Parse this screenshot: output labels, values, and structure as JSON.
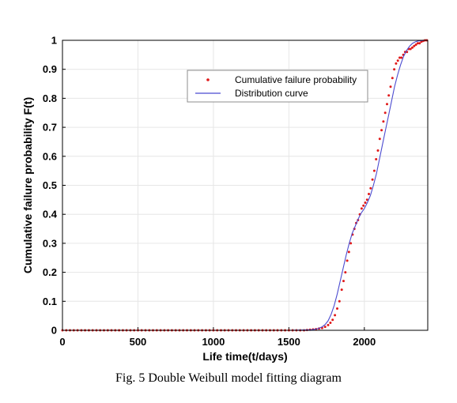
{
  "caption": "Fig. 5 Double Weibull model fitting diagram",
  "chart_data": {
    "type": "scatter",
    "xlabel": "Life time(t/days)",
    "ylabel": "Cumulative failure probability F(t)",
    "xlim": [
      0,
      2420
    ],
    "ylim": [
      0,
      1
    ],
    "x_ticks": [
      0,
      500,
      1000,
      1500,
      2000
    ],
    "y_ticks": [
      0,
      0.1,
      0.2,
      0.3,
      0.4,
      0.5,
      0.6,
      0.7,
      0.8,
      0.9,
      1
    ],
    "grid": true,
    "legend_position": "top-right",
    "series": [
      {
        "name": "Cumulative failure probability",
        "style": "dots",
        "color": "#e0191a",
        "x": [
          0,
          25,
          50,
          75,
          100,
          125,
          150,
          175,
          200,
          225,
          250,
          275,
          300,
          325,
          350,
          375,
          400,
          425,
          450,
          475,
          500,
          525,
          550,
          575,
          600,
          625,
          650,
          675,
          700,
          725,
          750,
          775,
          800,
          825,
          850,
          875,
          900,
          925,
          950,
          975,
          1000,
          1025,
          1050,
          1075,
          1100,
          1125,
          1150,
          1175,
          1200,
          1225,
          1250,
          1275,
          1300,
          1325,
          1350,
          1375,
          1400,
          1425,
          1450,
          1475,
          1500,
          1525,
          1550,
          1575,
          1600,
          1620,
          1640,
          1660,
          1680,
          1700,
          1720,
          1740,
          1760,
          1775,
          1790,
          1805,
          1820,
          1835,
          1850,
          1862,
          1874,
          1886,
          1898,
          1910,
          1922,
          1934,
          1946,
          1958,
          1970,
          1982,
          1994,
          2006,
          2018,
          2030,
          2042,
          2054,
          2066,
          2078,
          2090,
          2102,
          2114,
          2126,
          2138,
          2150,
          2162,
          2174,
          2186,
          2198,
          2210,
          2222,
          2234,
          2246,
          2258,
          2270,
          2282,
          2294,
          2306,
          2318,
          2330,
          2342,
          2354,
          2366,
          2378,
          2390,
          2402,
          2414
        ],
        "y": [
          0,
          0,
          0,
          0,
          0,
          0,
          0,
          0,
          0,
          0,
          0,
          0,
          0,
          0,
          0,
          0,
          0,
          0,
          0,
          0,
          0,
          0,
          0,
          0,
          0,
          0,
          0,
          0,
          0,
          0,
          0,
          0,
          0,
          0,
          0,
          0,
          0,
          0,
          0,
          0,
          0,
          0,
          0,
          0,
          0,
          0,
          0,
          0,
          0,
          0,
          0,
          0,
          0,
          0,
          0,
          0,
          0,
          0,
          0,
          0,
          0,
          0,
          0,
          0,
          0,
          0.001,
          0.002,
          0.003,
          0.004,
          0.006,
          0.008,
          0.012,
          0.018,
          0.026,
          0.036,
          0.052,
          0.075,
          0.1,
          0.14,
          0.17,
          0.2,
          0.24,
          0.27,
          0.3,
          0.33,
          0.35,
          0.37,
          0.38,
          0.4,
          0.42,
          0.43,
          0.44,
          0.45,
          0.47,
          0.49,
          0.52,
          0.55,
          0.59,
          0.62,
          0.66,
          0.69,
          0.72,
          0.75,
          0.78,
          0.81,
          0.84,
          0.87,
          0.9,
          0.92,
          0.93,
          0.94,
          0.94,
          0.95,
          0.96,
          0.96,
          0.97,
          0.97,
          0.975,
          0.98,
          0.985,
          0.99,
          0.99,
          0.995,
          0.998,
          1,
          1
        ]
      },
      {
        "name": "Distribution curve",
        "style": "line",
        "color": "#4b4bd0",
        "x": [
          0,
          200,
          400,
          600,
          800,
          1000,
          1200,
          1400,
          1500,
          1550,
          1600,
          1650,
          1680,
          1700,
          1720,
          1740,
          1760,
          1780,
          1800,
          1820,
          1840,
          1860,
          1880,
          1900,
          1920,
          1940,
          1960,
          1980,
          2000,
          2020,
          2040,
          2060,
          2080,
          2100,
          2120,
          2140,
          2160,
          2180,
          2200,
          2220,
          2240,
          2260,
          2280,
          2300,
          2320,
          2340,
          2360,
          2380,
          2400,
          2420
        ],
        "y": [
          0,
          0,
          0,
          0,
          0,
          0,
          0,
          0,
          0,
          0.0005,
          0.001,
          0.002,
          0.004,
          0.007,
          0.012,
          0.02,
          0.033,
          0.055,
          0.085,
          0.125,
          0.17,
          0.215,
          0.26,
          0.3,
          0.335,
          0.36,
          0.385,
          0.405,
          0.42,
          0.44,
          0.465,
          0.5,
          0.54,
          0.59,
          0.64,
          0.69,
          0.74,
          0.79,
          0.84,
          0.88,
          0.915,
          0.945,
          0.965,
          0.98,
          0.99,
          0.995,
          0.998,
          0.999,
          1,
          1
        ]
      }
    ]
  }
}
